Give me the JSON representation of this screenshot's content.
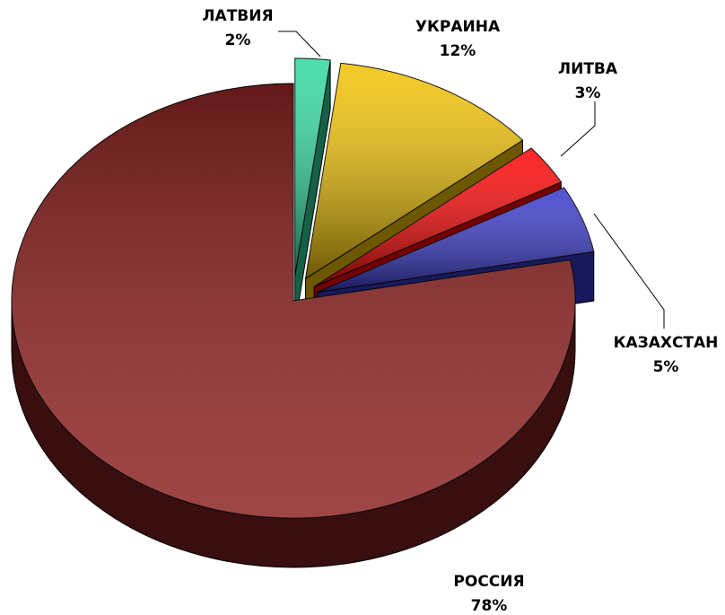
{
  "chart_data": {
    "type": "pie",
    "categories": [
      "ЛАТВИЯ",
      "УКРАИНА",
      "ЛИТВА",
      "КАЗАХСТАН",
      "РОССИЯ"
    ],
    "values": [
      2,
      12,
      3,
      5,
      78
    ],
    "value_labels": [
      "2%",
      "12%",
      "3%",
      "5%",
      "78%"
    ],
    "colors": [
      "#2ed8a0",
      "#f2c200",
      "#ff0000",
      "#3535cc",
      "#8e2424"
    ]
  }
}
